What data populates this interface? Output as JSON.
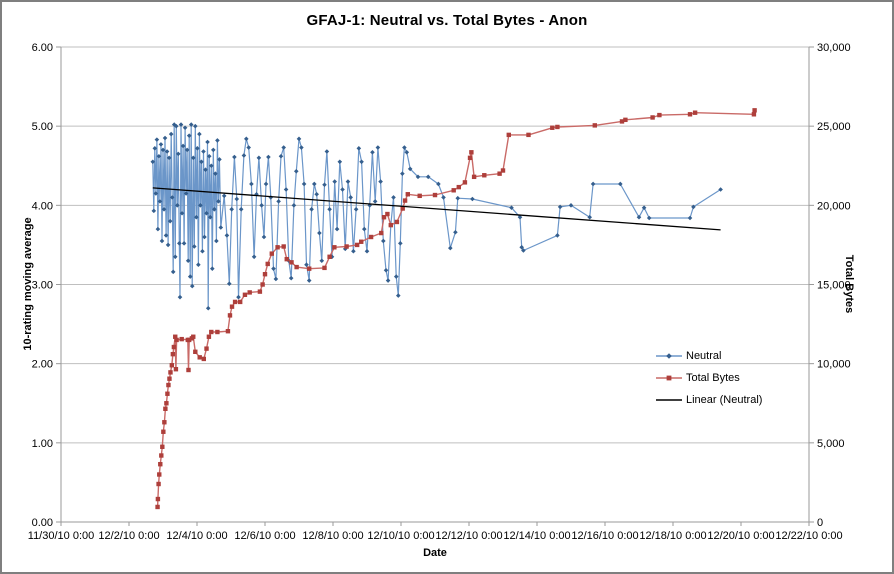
{
  "chart_data": {
    "type": "line",
    "title": "GFAJ-1: Neutral vs. Total Bytes - Anon",
    "x_axis": {
      "title": "Date",
      "tick_labels": [
        "11/30/10 0:00",
        "12/2/10 0:00",
        "12/4/10 0:00",
        "12/6/10 0:00",
        "12/8/10 0:00",
        "12/10/10 0:00",
        "12/12/10 0:00",
        "12/14/10 0:00",
        "12/16/10 0:00",
        "12/18/10 0:00",
        "12/20/10 0:00",
        "12/22/10 0:00"
      ],
      "range_days": [
        0,
        22
      ],
      "note": "x values in series are days since 11/30/10 0:00"
    },
    "y_axis_left": {
      "title": "10-rating moving average",
      "tick_labels": [
        "0.00",
        "1.00",
        "2.00",
        "3.00",
        "4.00",
        "5.00",
        "6.00"
      ],
      "min": 0,
      "max": 6
    },
    "y_axis_right": {
      "title": "Total Bytes",
      "tick_labels": [
        "0",
        "5,000",
        "10,000",
        "15,000",
        "20,000",
        "25,000",
        "30,000"
      ],
      "min": 0,
      "max": 30000
    },
    "grid": true,
    "legend": {
      "position": "right-middle",
      "entries": [
        {
          "label": "Neutral",
          "color": "#4F81BD",
          "marker": "diamond"
        },
        {
          "label": "Total Bytes",
          "color": "#C0504D",
          "marker": "square"
        },
        {
          "label": "Linear (Neutral)",
          "color": "#000000",
          "marker": "none"
        }
      ]
    },
    "colors": {
      "neutral_line": "#6B96C9",
      "neutral_marker": "#355F8E",
      "total_bytes_line": "#C96A67",
      "total_bytes_marker": "#AE3F3B",
      "trendline": "#000000",
      "gridline": "#BFBFBF",
      "axis": "#9a9a9a"
    },
    "series": [
      {
        "name": "Neutral",
        "axis": "left",
        "marker": "diamond",
        "points": [
          [
            2.7,
            4.55
          ],
          [
            2.73,
            3.93
          ],
          [
            2.76,
            4.72
          ],
          [
            2.79,
            4.15
          ],
          [
            2.82,
            4.83
          ],
          [
            2.85,
            3.7
          ],
          [
            2.88,
            4.62
          ],
          [
            2.91,
            4.05
          ],
          [
            2.94,
            4.77
          ],
          [
            2.97,
            3.55
          ],
          [
            3.0,
            4.7
          ],
          [
            3.03,
            3.95
          ],
          [
            3.06,
            4.85
          ],
          [
            3.09,
            3.62
          ],
          [
            3.12,
            4.68
          ],
          [
            3.15,
            3.5
          ],
          [
            3.18,
            4.6
          ],
          [
            3.21,
            3.8
          ],
          [
            3.24,
            4.9
          ],
          [
            3.27,
            4.1
          ],
          [
            3.3,
            3.16
          ],
          [
            3.33,
            5.02
          ],
          [
            3.36,
            3.35
          ],
          [
            3.39,
            5.0
          ],
          [
            3.42,
            4.0
          ],
          [
            3.45,
            4.65
          ],
          [
            3.48,
            3.52
          ],
          [
            3.5,
            2.84
          ],
          [
            3.53,
            5.02
          ],
          [
            3.56,
            3.9
          ],
          [
            3.59,
            4.75
          ],
          [
            3.62,
            3.52
          ],
          [
            3.65,
            4.98
          ],
          [
            3.68,
            4.15
          ],
          [
            3.71,
            4.7
          ],
          [
            3.74,
            3.3
          ],
          [
            3.77,
            4.88
          ],
          [
            3.8,
            3.1
          ],
          [
            3.83,
            5.02
          ],
          [
            3.86,
            2.98
          ],
          [
            3.89,
            4.6
          ],
          [
            3.92,
            3.48
          ],
          [
            3.95,
            5.0
          ],
          [
            3.98,
            3.85
          ],
          [
            4.01,
            4.72
          ],
          [
            4.04,
            3.25
          ],
          [
            4.07,
            4.9
          ],
          [
            4.1,
            4.0
          ],
          [
            4.13,
            4.55
          ],
          [
            4.16,
            3.42
          ],
          [
            4.19,
            4.68
          ],
          [
            4.22,
            3.6
          ],
          [
            4.25,
            4.45
          ],
          [
            4.28,
            3.9
          ],
          [
            4.31,
            4.8
          ],
          [
            4.33,
            2.7
          ],
          [
            4.36,
            4.62
          ],
          [
            4.39,
            3.85
          ],
          [
            4.42,
            4.5
          ],
          [
            4.45,
            3.2
          ],
          [
            4.48,
            4.7
          ],
          [
            4.51,
            3.95
          ],
          [
            4.54,
            4.4
          ],
          [
            4.57,
            3.55
          ],
          [
            4.6,
            4.82
          ],
          [
            4.63,
            4.05
          ],
          [
            4.66,
            4.58
          ],
          [
            4.7,
            3.72
          ],
          [
            4.8,
            4.12
          ],
          [
            4.88,
            3.62
          ],
          [
            4.95,
            3.01
          ],
          [
            5.02,
            3.95
          ],
          [
            5.1,
            4.61
          ],
          [
            5.17,
            4.08
          ],
          [
            5.22,
            2.84
          ],
          [
            5.3,
            3.95
          ],
          [
            5.38,
            4.63
          ],
          [
            5.45,
            4.84
          ],
          [
            5.52,
            4.73
          ],
          [
            5.6,
            4.27
          ],
          [
            5.68,
            3.35
          ],
          [
            5.75,
            4.14
          ],
          [
            5.82,
            4.6
          ],
          [
            5.9,
            4.0
          ],
          [
            5.97,
            3.6
          ],
          [
            6.03,
            4.27
          ],
          [
            6.1,
            4.61
          ],
          [
            6.17,
            4.1
          ],
          [
            6.25,
            3.2
          ],
          [
            6.32,
            3.07
          ],
          [
            6.4,
            4.05
          ],
          [
            6.47,
            4.62
          ],
          [
            6.55,
            4.73
          ],
          [
            6.62,
            4.2
          ],
          [
            6.7,
            3.3
          ],
          [
            6.77,
            3.08
          ],
          [
            6.85,
            4.0
          ],
          [
            6.92,
            4.43
          ],
          [
            7.0,
            4.84
          ],
          [
            7.07,
            4.73
          ],
          [
            7.15,
            4.27
          ],
          [
            7.22,
            3.25
          ],
          [
            7.3,
            3.05
          ],
          [
            7.37,
            3.95
          ],
          [
            7.45,
            4.27
          ],
          [
            7.52,
            4.14
          ],
          [
            7.6,
            3.65
          ],
          [
            7.67,
            3.3
          ],
          [
            7.75,
            4.26
          ],
          [
            7.82,
            4.68
          ],
          [
            7.9,
            3.95
          ],
          [
            7.97,
            3.35
          ],
          [
            8.05,
            4.3
          ],
          [
            8.12,
            3.7
          ],
          [
            8.2,
            4.55
          ],
          [
            8.28,
            4.2
          ],
          [
            8.36,
            3.45
          ],
          [
            8.44,
            4.3
          ],
          [
            8.52,
            4.1
          ],
          [
            8.6,
            3.42
          ],
          [
            8.68,
            3.95
          ],
          [
            8.76,
            4.72
          ],
          [
            8.84,
            4.55
          ],
          [
            8.92,
            3.7
          ],
          [
            9.0,
            3.42
          ],
          [
            9.08,
            4.0
          ],
          [
            9.16,
            4.67
          ],
          [
            9.24,
            4.05
          ],
          [
            9.32,
            4.73
          ],
          [
            9.4,
            4.3
          ],
          [
            9.48,
            3.55
          ],
          [
            9.56,
            3.18
          ],
          [
            9.62,
            3.05
          ],
          [
            9.7,
            3.75
          ],
          [
            9.78,
            4.1
          ],
          [
            9.86,
            3.1
          ],
          [
            9.92,
            2.86
          ],
          [
            9.98,
            3.52
          ],
          [
            10.04,
            4.4
          ],
          [
            10.1,
            4.73
          ],
          [
            10.17,
            4.67
          ],
          [
            10.27,
            4.46
          ],
          [
            10.5,
            4.36
          ],
          [
            10.8,
            4.36
          ],
          [
            11.1,
            4.27
          ],
          [
            11.25,
            4.1
          ],
          [
            11.45,
            3.46
          ],
          [
            11.6,
            3.66
          ],
          [
            11.67,
            4.09
          ],
          [
            12.1,
            4.08
          ],
          [
            13.25,
            3.97
          ],
          [
            13.5,
            3.85
          ],
          [
            13.55,
            3.47
          ],
          [
            13.6,
            3.43
          ],
          [
            14.6,
            3.62
          ],
          [
            14.68,
            3.98
          ],
          [
            15.0,
            4.0
          ],
          [
            15.55,
            3.85
          ],
          [
            15.65,
            4.27
          ],
          [
            16.45,
            4.27
          ],
          [
            17.0,
            3.85
          ],
          [
            17.15,
            3.97
          ],
          [
            17.3,
            3.84
          ],
          [
            18.5,
            3.84
          ],
          [
            18.6,
            3.98
          ],
          [
            19.4,
            4.2
          ]
        ]
      },
      {
        "name": "Total Bytes",
        "axis": "right",
        "marker": "square",
        "points": [
          [
            2.84,
            950
          ],
          [
            2.85,
            1450
          ],
          [
            2.87,
            2400
          ],
          [
            2.89,
            3000
          ],
          [
            2.92,
            3650
          ],
          [
            2.95,
            4200
          ],
          [
            2.98,
            4750
          ],
          [
            3.01,
            5700
          ],
          [
            3.04,
            6300
          ],
          [
            3.07,
            7150
          ],
          [
            3.1,
            7500
          ],
          [
            3.13,
            8100
          ],
          [
            3.16,
            8650
          ],
          [
            3.19,
            9050
          ],
          [
            3.22,
            9450
          ],
          [
            3.26,
            9900
          ],
          [
            3.29,
            10600
          ],
          [
            3.32,
            11050
          ],
          [
            3.36,
            11700
          ],
          [
            3.38,
            9650
          ],
          [
            3.4,
            11500
          ],
          [
            3.55,
            11550
          ],
          [
            3.73,
            11500
          ],
          [
            3.75,
            9600
          ],
          [
            3.77,
            11500
          ],
          [
            3.85,
            11600
          ],
          [
            3.89,
            11700
          ],
          [
            3.95,
            10750
          ],
          [
            4.08,
            10400
          ],
          [
            4.2,
            10300
          ],
          [
            4.28,
            10950
          ],
          [
            4.35,
            11700
          ],
          [
            4.42,
            12000
          ],
          [
            4.6,
            12000
          ],
          [
            4.91,
            12050
          ],
          [
            4.97,
            13050
          ],
          [
            5.03,
            13600
          ],
          [
            5.12,
            13900
          ],
          [
            5.27,
            13900
          ],
          [
            5.41,
            14350
          ],
          [
            5.55,
            14500
          ],
          [
            5.85,
            14550
          ],
          [
            5.93,
            15000
          ],
          [
            6.0,
            15650
          ],
          [
            6.08,
            16300
          ],
          [
            6.2,
            16950
          ],
          [
            6.37,
            17350
          ],
          [
            6.55,
            17400
          ],
          [
            6.64,
            16600
          ],
          [
            6.78,
            16400
          ],
          [
            6.93,
            16100
          ],
          [
            7.3,
            16000
          ],
          [
            7.75,
            16050
          ],
          [
            7.9,
            16750
          ],
          [
            8.04,
            17350
          ],
          [
            8.4,
            17400
          ],
          [
            8.71,
            17500
          ],
          [
            8.83,
            17700
          ],
          [
            9.12,
            18000
          ],
          [
            9.42,
            18250
          ],
          [
            9.5,
            19250
          ],
          [
            9.6,
            19450
          ],
          [
            9.7,
            18750
          ],
          [
            9.88,
            18950
          ],
          [
            10.05,
            19800
          ],
          [
            10.12,
            20300
          ],
          [
            10.2,
            20700
          ],
          [
            10.55,
            20600
          ],
          [
            11.0,
            20650
          ],
          [
            11.55,
            20950
          ],
          [
            11.7,
            21150
          ],
          [
            11.88,
            21450
          ],
          [
            12.03,
            23000
          ],
          [
            12.07,
            23350
          ],
          [
            12.15,
            21800
          ],
          [
            12.45,
            21900
          ],
          [
            12.9,
            22000
          ],
          [
            13.0,
            22200
          ],
          [
            13.17,
            24450
          ],
          [
            13.75,
            24450
          ],
          [
            14.45,
            24900
          ],
          [
            14.6,
            24950
          ],
          [
            15.7,
            25050
          ],
          [
            16.5,
            25300
          ],
          [
            16.6,
            25400
          ],
          [
            17.4,
            25550
          ],
          [
            17.6,
            25700
          ],
          [
            18.5,
            25750
          ],
          [
            18.65,
            25850
          ],
          [
            20.38,
            25750
          ],
          [
            20.4,
            26000
          ]
        ]
      },
      {
        "name": "Linear (Neutral)",
        "axis": "left",
        "marker": "none",
        "points": [
          [
            2.7,
            4.22
          ],
          [
            19.4,
            3.69
          ]
        ]
      }
    ]
  }
}
